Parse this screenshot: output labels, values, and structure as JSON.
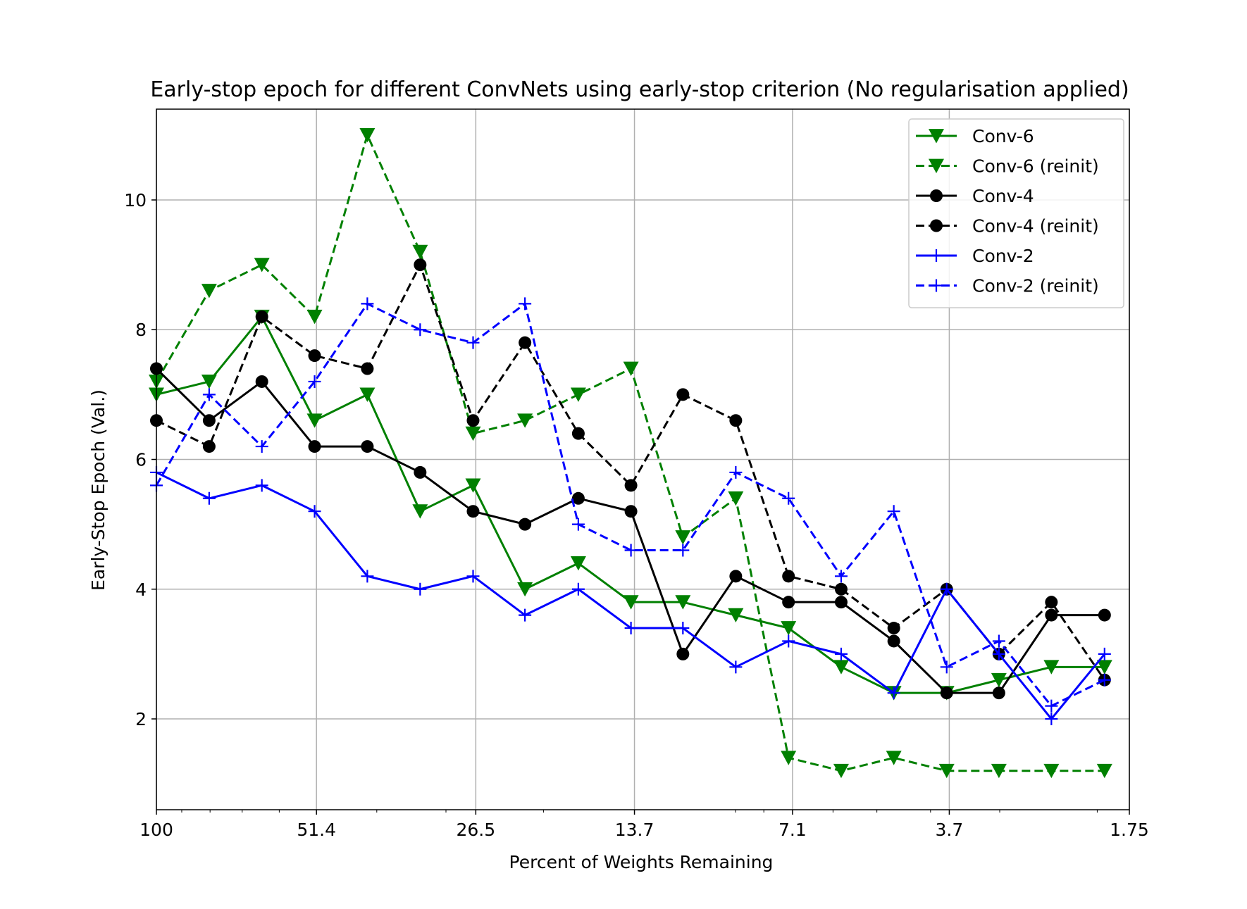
{
  "chart_data": {
    "type": "line",
    "title": "Early-stop epoch for different ConvNets using early-stop criterion (No regularisation applied)",
    "xlabel": "Percent of Weights Remaining",
    "ylabel": "Early-Stop Epoch (Val.)",
    "x_scale": "log (reversed)",
    "x": [
      100,
      80.3,
      64.5,
      51.8,
      41.6,
      33.4,
      26.8,
      21.6,
      17.3,
      13.9,
      11.2,
      8.99,
      7.22,
      5.8,
      4.66,
      3.74,
      3.01,
      2.42,
      1.94
    ],
    "x_ticks": [
      "100",
      "51.4",
      "26.5",
      "13.7",
      "7.1",
      "3.7",
      "1.75"
    ],
    "x_tick_values": [
      100,
      51.4,
      26.5,
      13.7,
      7.1,
      3.7,
      1.75
    ],
    "xlim": [
      100,
      1.75
    ],
    "ylim": [
      0.6,
      11.4
    ],
    "y_ticks": [
      "2",
      "4",
      "6",
      "8",
      "10"
    ],
    "y_tick_values": [
      2,
      4,
      6,
      8,
      10
    ],
    "grid": true,
    "legend_position": "top-right",
    "series": [
      {
        "name": "Conv-6",
        "color": "#008000",
        "dash": "solid",
        "marker": "triangle-down",
        "values": [
          7.0,
          7.2,
          8.2,
          6.6,
          7.0,
          5.2,
          5.6,
          4.0,
          4.4,
          3.8,
          3.8,
          3.6,
          3.4,
          2.8,
          2.4,
          2.4,
          2.6,
          2.8,
          2.8
        ]
      },
      {
        "name": "Conv-6 (reinit)",
        "color": "#008000",
        "dash": "dashed",
        "marker": "triangle-down",
        "values": [
          7.2,
          8.6,
          9.0,
          8.2,
          11.0,
          9.2,
          6.4,
          6.6,
          7.0,
          7.4,
          4.8,
          5.4,
          1.4,
          1.2,
          1.4,
          1.2,
          1.2,
          1.2,
          1.2
        ]
      },
      {
        "name": "Conv-4",
        "color": "#000000",
        "dash": "solid",
        "marker": "circle",
        "values": [
          7.4,
          6.6,
          7.2,
          6.2,
          6.2,
          5.8,
          5.2,
          5.0,
          5.4,
          5.2,
          3.0,
          4.2,
          3.8,
          3.8,
          3.2,
          2.4,
          2.4,
          3.6,
          3.6
        ]
      },
      {
        "name": "Conv-4 (reinit)",
        "color": "#000000",
        "dash": "dashed",
        "marker": "circle",
        "values": [
          6.6,
          6.2,
          8.2,
          7.6,
          7.4,
          9.0,
          6.6,
          7.8,
          6.4,
          5.6,
          7.0,
          6.6,
          4.2,
          4.0,
          3.4,
          4.0,
          3.0,
          3.8,
          2.6
        ]
      },
      {
        "name": "Conv-2",
        "color": "#0000ff",
        "dash": "solid",
        "marker": "plus",
        "values": [
          5.8,
          5.4,
          5.6,
          5.2,
          4.2,
          4.0,
          4.2,
          3.6,
          4.0,
          3.4,
          3.4,
          2.8,
          3.2,
          3.0,
          2.4,
          4.0,
          3.0,
          2.0,
          3.0
        ]
      },
      {
        "name": "Conv-2 (reinit)",
        "color": "#0000ff",
        "dash": "dashed",
        "marker": "plus",
        "values": [
          5.6,
          7.0,
          6.2,
          7.2,
          8.4,
          8.0,
          7.8,
          8.4,
          5.0,
          4.6,
          4.6,
          5.8,
          5.4,
          4.2,
          5.2,
          2.8,
          3.2,
          2.2,
          2.6
        ]
      }
    ]
  }
}
